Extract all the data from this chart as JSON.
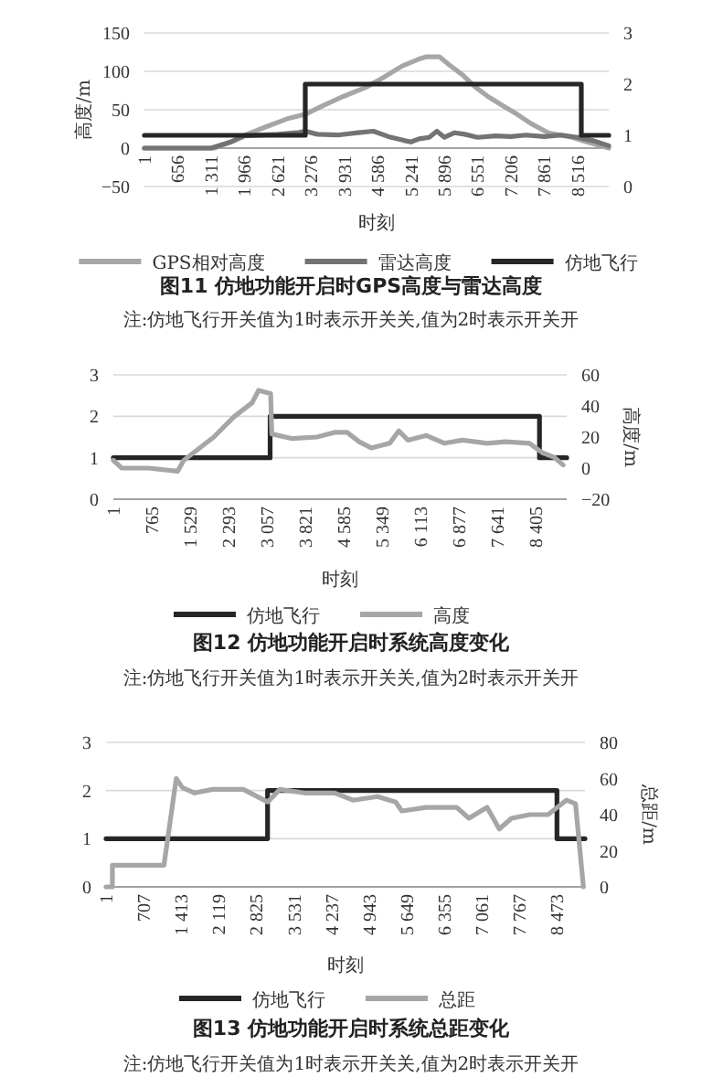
{
  "chart_data": [
    {
      "type": "line",
      "title": "图11 仿地功能开启时GPS高度与雷达高度",
      "annotations": [
        "注:仿地飞行开关值为1时表示开关关,值为2时表示开关开"
      ],
      "xlabel": "时刻",
      "ylabel": "高度/m",
      "xlim": [
        1,
        9130
      ],
      "xticks": [
        1,
        656,
        {
          "value": 1311,
          "label": "1 311"
        },
        {
          "value": 1966,
          "label": "1 966"
        },
        {
          "value": 2621,
          "label": "2 621"
        },
        {
          "value": 3276,
          "label": "3 276"
        },
        {
          "value": 3931,
          "label": "3 931"
        },
        {
          "value": 4586,
          "label": "4 586"
        },
        {
          "value": 5241,
          "label": "5 241"
        },
        {
          "value": 5896,
          "label": "5 896"
        },
        {
          "value": 6551,
          "label": "6 551"
        },
        {
          "value": 7206,
          "label": "7 206"
        },
        {
          "value": 7861,
          "label": "7 861"
        },
        {
          "value": 8516,
          "label": "8 516"
        }
      ],
      "ylim": [
        -50,
        150
      ],
      "yticks": [
        -50,
        0,
        50,
        100,
        150
      ],
      "y2lim": [
        0,
        3
      ],
      "y2ticks": [
        0,
        1,
        2,
        3
      ],
      "grid": "y",
      "legend": "bottom",
      "series": [
        {
          "name": "GPS相对高度",
          "color": "#a6a6a6",
          "x": [
            1,
            700,
            1370,
            1700,
            1940,
            2400,
            2800,
            3160,
            3500,
            3900,
            4350,
            4700,
            5070,
            5400,
            5550,
            5800,
            6000,
            6260,
            6500,
            6760,
            7050,
            7330,
            7600,
            7940,
            8410,
            8700,
            9130
          ],
          "values": [
            0,
            0,
            0,
            8,
            16,
            28,
            38,
            44,
            55,
            67,
            79,
            92,
            107,
            116,
            119,
            119,
            108,
            95,
            80,
            67,
            55,
            44,
            32,
            20,
            14,
            8,
            0
          ]
        },
        {
          "name": "雷达高度",
          "color": "#737373",
          "x": [
            1,
            1311,
            1700,
            1966,
            2300,
            2621,
            3000,
            3163,
            3400,
            3800,
            4200,
            4500,
            4800,
            5100,
            5241,
            5400,
            5600,
            5750,
            5900,
            6100,
            6300,
            6551,
            6900,
            7206,
            7500,
            7861,
            8200,
            8516,
            8800,
            9130
          ],
          "values": [
            0,
            0,
            8,
            16,
            17,
            18,
            20,
            22,
            18,
            17,
            20,
            22,
            15,
            10,
            8,
            12,
            14,
            22,
            14,
            20,
            18,
            14,
            16,
            15,
            17,
            15,
            17,
            14,
            10,
            3
          ]
        },
        {
          "name": "仿地飞行",
          "color": "#262626",
          "axis": "y2",
          "x": [
            1,
            3163,
            3163,
            8590,
            8590,
            9130
          ],
          "values": [
            1,
            1,
            2,
            2,
            1,
            1
          ]
        }
      ]
    },
    {
      "type": "line",
      "title": "图12 仿地功能开启时系统高度变化",
      "annotations": [
        "注:仿地飞行开关值为1时表示开关关,值为2时表示开关开"
      ],
      "xlabel": "时刻",
      "y2label": "高度/m",
      "xlim": [
        1,
        9020
      ],
      "xticks": [
        1,
        765,
        {
          "value": 1529,
          "label": "1 529"
        },
        {
          "value": 2293,
          "label": "2 293"
        },
        {
          "value": 3057,
          "label": "3 057"
        },
        {
          "value": 3821,
          "label": "3 821"
        },
        {
          "value": 4585,
          "label": "4 585"
        },
        {
          "value": 5349,
          "label": "5 349"
        },
        {
          "value": 6113,
          "label": "6 113"
        },
        {
          "value": 6877,
          "label": "6 877"
        },
        {
          "value": 7641,
          "label": "7 641"
        },
        {
          "value": 8405,
          "label": "8 405"
        }
      ],
      "ylim": [
        0,
        3
      ],
      "yticks": [
        0,
        1,
        2,
        3
      ],
      "y2lim": [
        -20,
        60
      ],
      "y2ticks": [
        -20,
        0,
        20,
        40,
        60
      ],
      "grid": "y",
      "legend": "bottom",
      "series": [
        {
          "name": "仿地飞行",
          "color": "#262626",
          "x": [
            1,
            3120,
            3120,
            8478,
            8478,
            9020
          ],
          "values": [
            1,
            1,
            2,
            2,
            1,
            1
          ]
        },
        {
          "name": "高度",
          "color": "#a6a6a6",
          "axis": "y2",
          "x": [
            1,
            170,
            700,
            1280,
            1400,
            2000,
            2400,
            2760,
            2890,
            3130,
            3152,
            3560,
            4050,
            4400,
            4650,
            4890,
            5130,
            5500,
            5680,
            5860,
            6230,
            6590,
            6950,
            7440,
            7800,
            8280,
            8530,
            8770,
            8950
          ],
          "values": [
            5,
            0,
            0,
            -2,
            5,
            20,
            33,
            42,
            50,
            48,
            22,
            19,
            20,
            23,
            23,
            17,
            13,
            16,
            24,
            18,
            21,
            16,
            18,
            16,
            17,
            16,
            10,
            7,
            2
          ]
        }
      ]
    },
    {
      "type": "line",
      "title": "图13 仿地功能开启时系统总距变化",
      "annotations": [
        "注:仿地飞行开关值为1时表示开关关,值为2时表示开关开"
      ],
      "xlabel": "时刻",
      "y2label": "总距/m",
      "xlim": [
        1,
        9000
      ],
      "xticks": [
        1,
        707,
        {
          "value": 1413,
          "label": "1 413"
        },
        {
          "value": 2119,
          "label": "2 119"
        },
        {
          "value": 2825,
          "label": "2 825"
        },
        {
          "value": 3531,
          "label": "3 531"
        },
        {
          "value": 4237,
          "label": "4 237"
        },
        {
          "value": 4943,
          "label": "4 943"
        },
        {
          "value": 5649,
          "label": "5 649"
        },
        {
          "value": 6355,
          "label": "6 355"
        },
        {
          "value": 7061,
          "label": "7 061"
        },
        {
          "value": 7767,
          "label": "7 767"
        },
        {
          "value": 8473,
          "label": "8 473"
        }
      ],
      "ylim": [
        0,
        3
      ],
      "yticks": [
        0,
        1,
        2,
        3
      ],
      "y2lim": [
        0,
        80
      ],
      "y2ticks": [
        0,
        20,
        40,
        60,
        80
      ],
      "grid": "y",
      "legend": "bottom",
      "series": [
        {
          "name": "仿地飞行",
          "color": "#262626",
          "x": [
            1,
            3036,
            3036,
            8473,
            8473,
            9000
          ],
          "values": [
            1,
            1,
            2,
            2,
            1,
            1
          ]
        },
        {
          "name": "总距",
          "color": "#a6a6a6",
          "axis": "y2",
          "x": [
            1,
            120,
            121,
            1089,
            1320,
            1435,
            1664,
            2007,
            2580,
            3038,
            3267,
            3725,
            4298,
            4642,
            5100,
            5444,
            5558,
            6016,
            6589,
            6818,
            7161,
            7390,
            7620,
            7963,
            8306,
            8650,
            8822,
            8970
          ],
          "values": [
            0,
            0,
            12,
            12,
            60,
            55,
            52,
            54,
            54,
            47,
            54,
            52,
            52,
            48,
            50,
            47,
            42,
            44,
            44,
            38,
            44,
            32,
            38,
            40,
            40,
            48,
            46,
            0
          ]
        }
      ]
    }
  ]
}
